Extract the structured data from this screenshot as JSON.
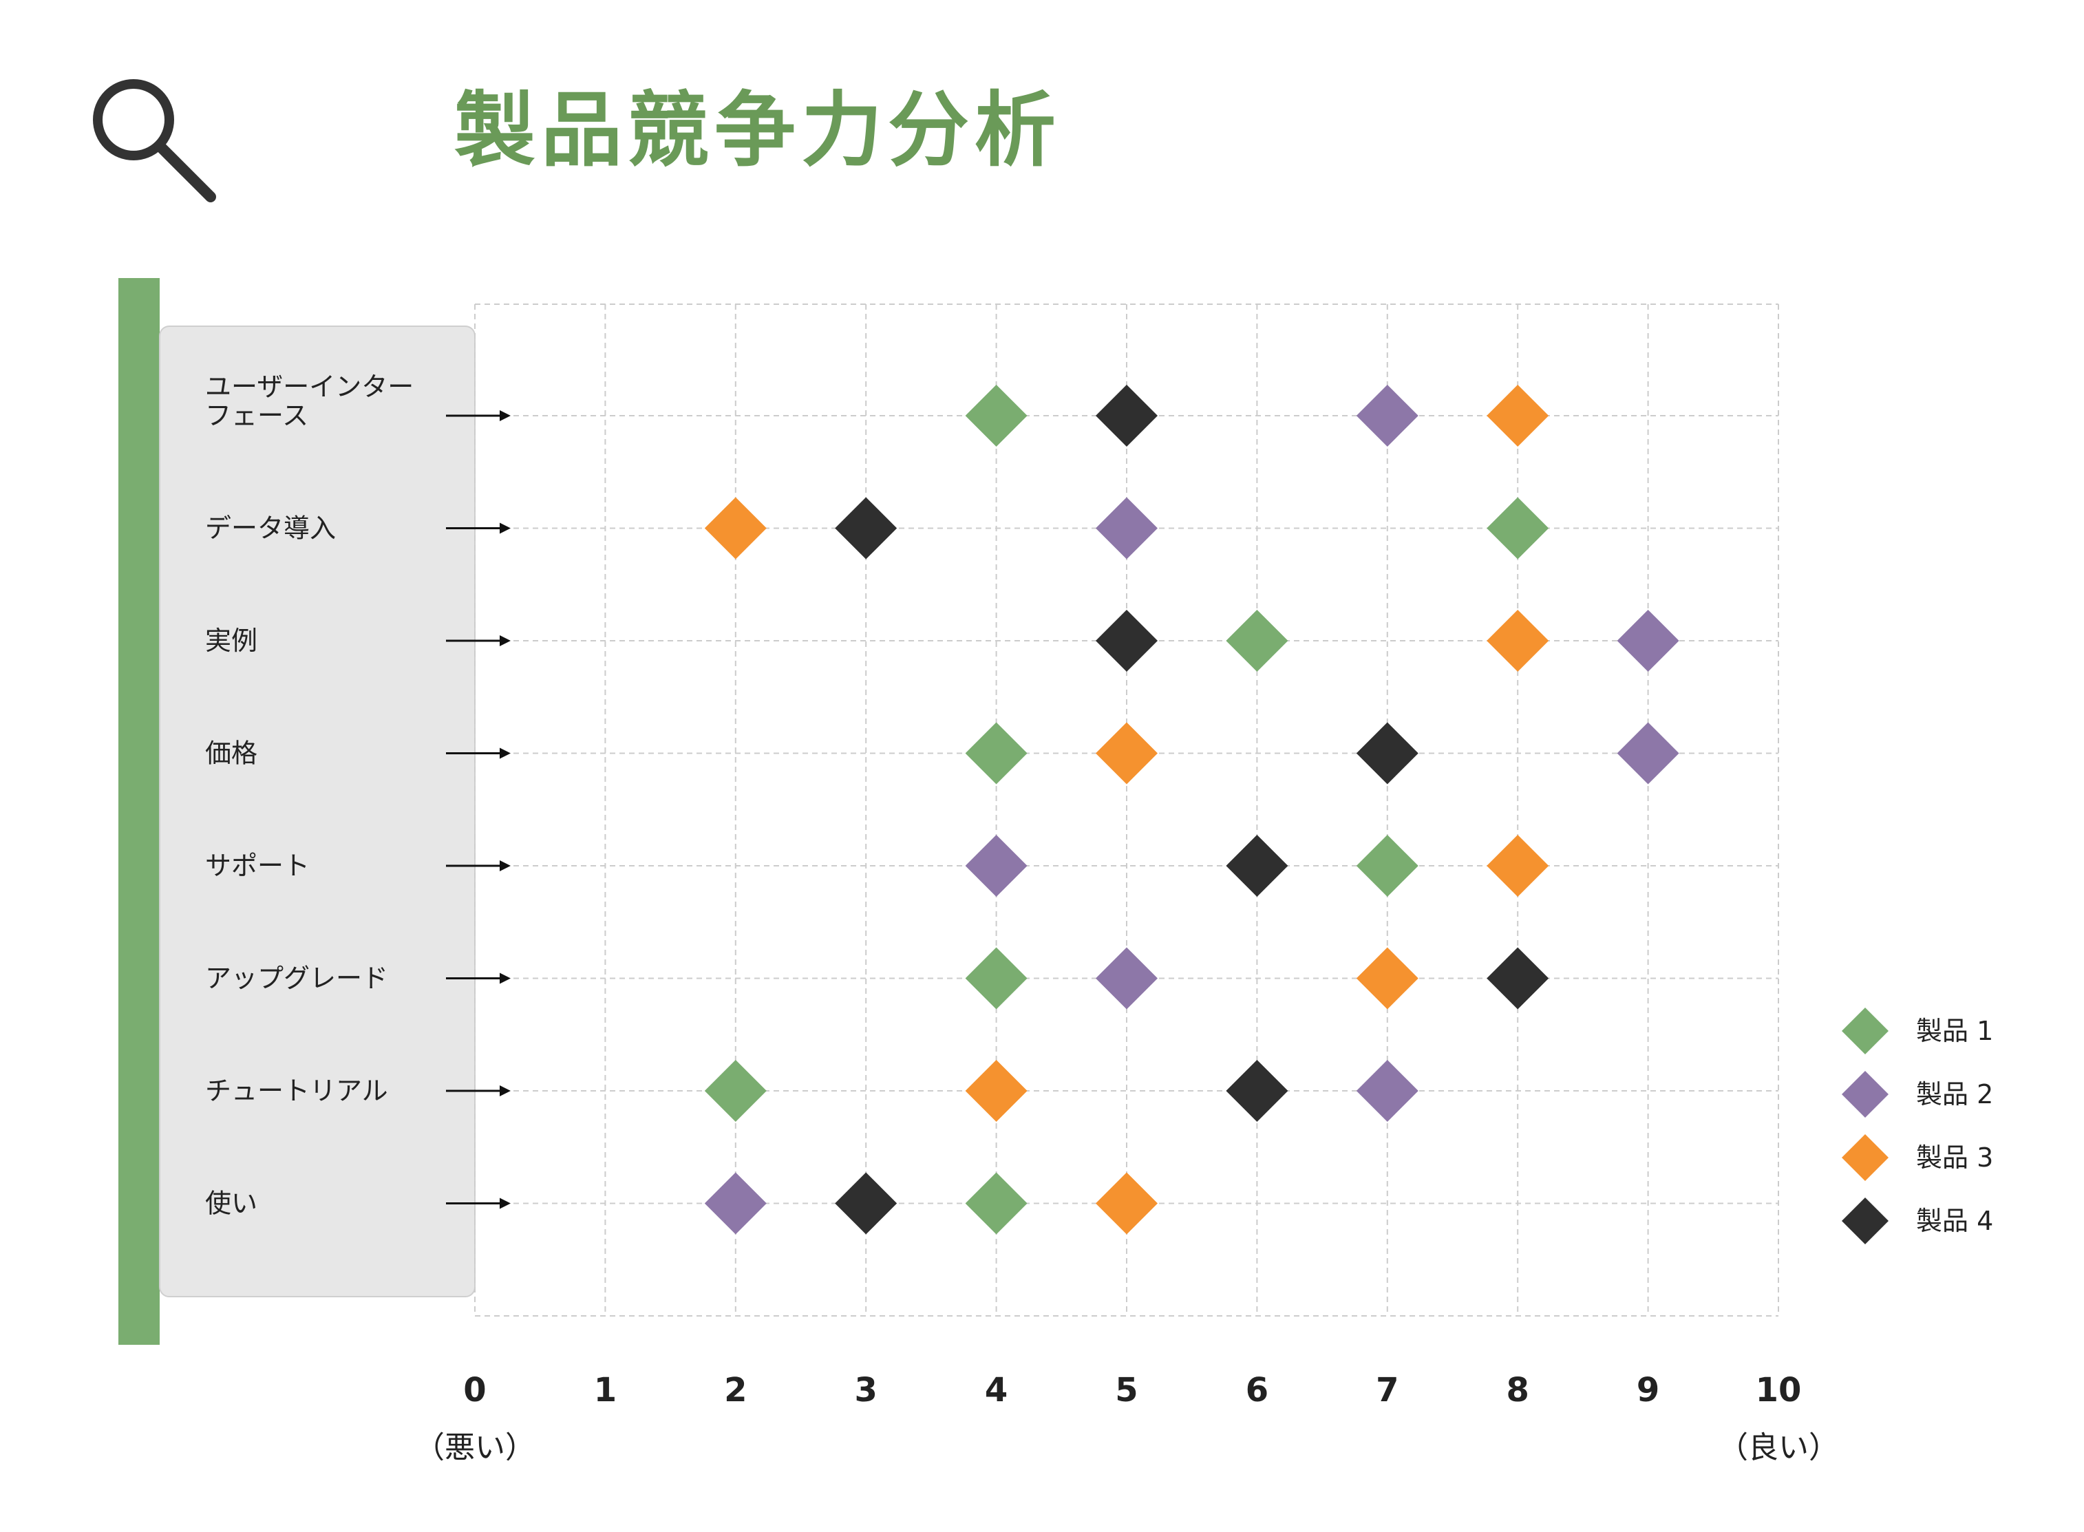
{
  "title": "製品競争力分析",
  "colors": {
    "title": "#6a9a58",
    "side_bar": "#7aad70",
    "label_panel": "#e7e7e7",
    "label_panel_border": "#cfcfcf",
    "grid": "#cccccc",
    "icon": "#333333"
  },
  "chart_data": {
    "type": "scatter",
    "categories": [
      [
        "ユーザーインター",
        "フェース"
      ],
      [
        "データ導入"
      ],
      [
        "実例"
      ],
      [
        "価格"
      ],
      [
        "サポート"
      ],
      [
        "アップグレード"
      ],
      [
        "チュートリアル"
      ],
      [
        "使い"
      ]
    ],
    "xlim": [
      0,
      10
    ],
    "x_ticks": [
      "0",
      "1",
      "2",
      "3",
      "4",
      "5",
      "6",
      "7",
      "8",
      "9",
      "10"
    ],
    "x_end_labels": {
      "low": "（悪い）",
      "high": "（良い）"
    },
    "grid": true,
    "legend_position": "right",
    "marker": "diamond",
    "series": [
      {
        "name": "製品 1",
        "color": "#7aad70",
        "values": [
          4,
          8,
          6,
          4,
          7,
          4,
          2,
          4
        ]
      },
      {
        "name": "製品 2",
        "color": "#8d77a8",
        "values": [
          7,
          5,
          9,
          9,
          4,
          5,
          7,
          2
        ]
      },
      {
        "name": "製品 3",
        "color": "#f5922f",
        "values": [
          8,
          2,
          8,
          5,
          8,
          7,
          4,
          5
        ]
      },
      {
        "name": "製品 4",
        "color": "#2f2f2f",
        "values": [
          5,
          3,
          5,
          7,
          6,
          8,
          6,
          3
        ]
      }
    ]
  }
}
